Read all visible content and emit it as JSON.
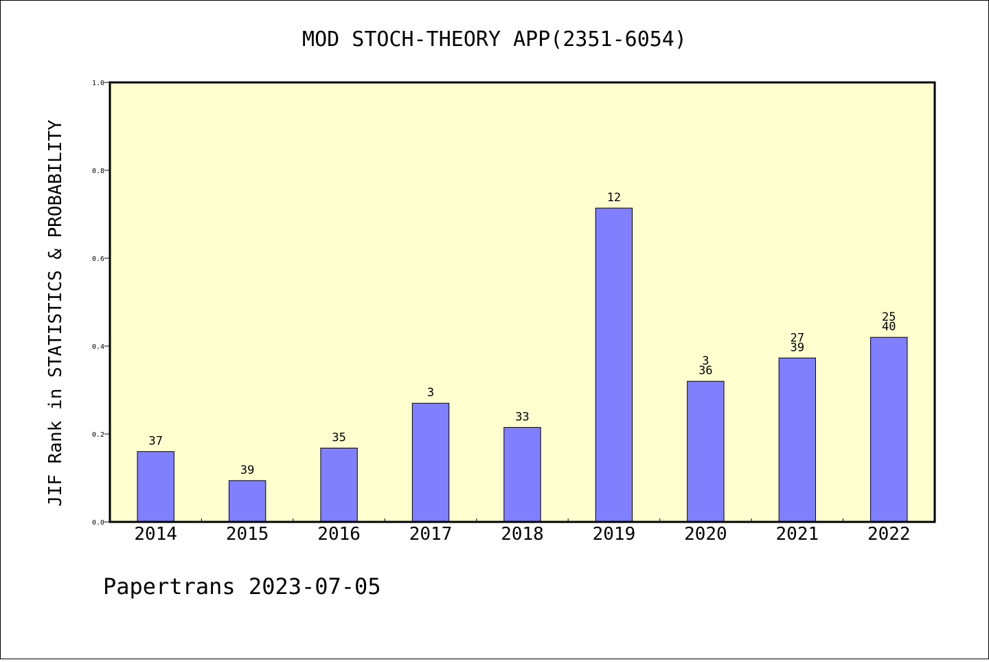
{
  "chart_data": {
    "type": "bar",
    "title": "MOD STOCH-THEORY APP(2351-6054)",
    "xlabel": "",
    "ylabel": "JIF Rank in STATISTICS & PROBABILITY",
    "ylim": [
      0,
      1.0
    ],
    "yticks": [
      "0.0",
      "0.2",
      "0.4",
      "0.6",
      "0.8",
      "1.0"
    ],
    "categories": [
      "2014",
      "2015",
      "2016",
      "2017",
      "2018",
      "2019",
      "2020",
      "2021",
      "2022"
    ],
    "values": [
      0.16,
      0.094,
      0.168,
      0.27,
      0.215,
      0.714,
      0.32,
      0.373,
      0.42
    ],
    "labels": [
      [
        "37"
      ],
      [
        "39"
      ],
      [
        "35"
      ],
      [
        "3"
      ],
      [
        "33"
      ],
      [
        "12"
      ],
      [
        "3",
        "36"
      ],
      [
        "27",
        "39"
      ],
      [
        "25",
        "40"
      ]
    ],
    "grid": false,
    "colors": {
      "bar": "#8080ff",
      "plot_background": "#ffffd0",
      "bar_edge": "#000000"
    }
  },
  "footer": "Papertrans 2023-07-05"
}
